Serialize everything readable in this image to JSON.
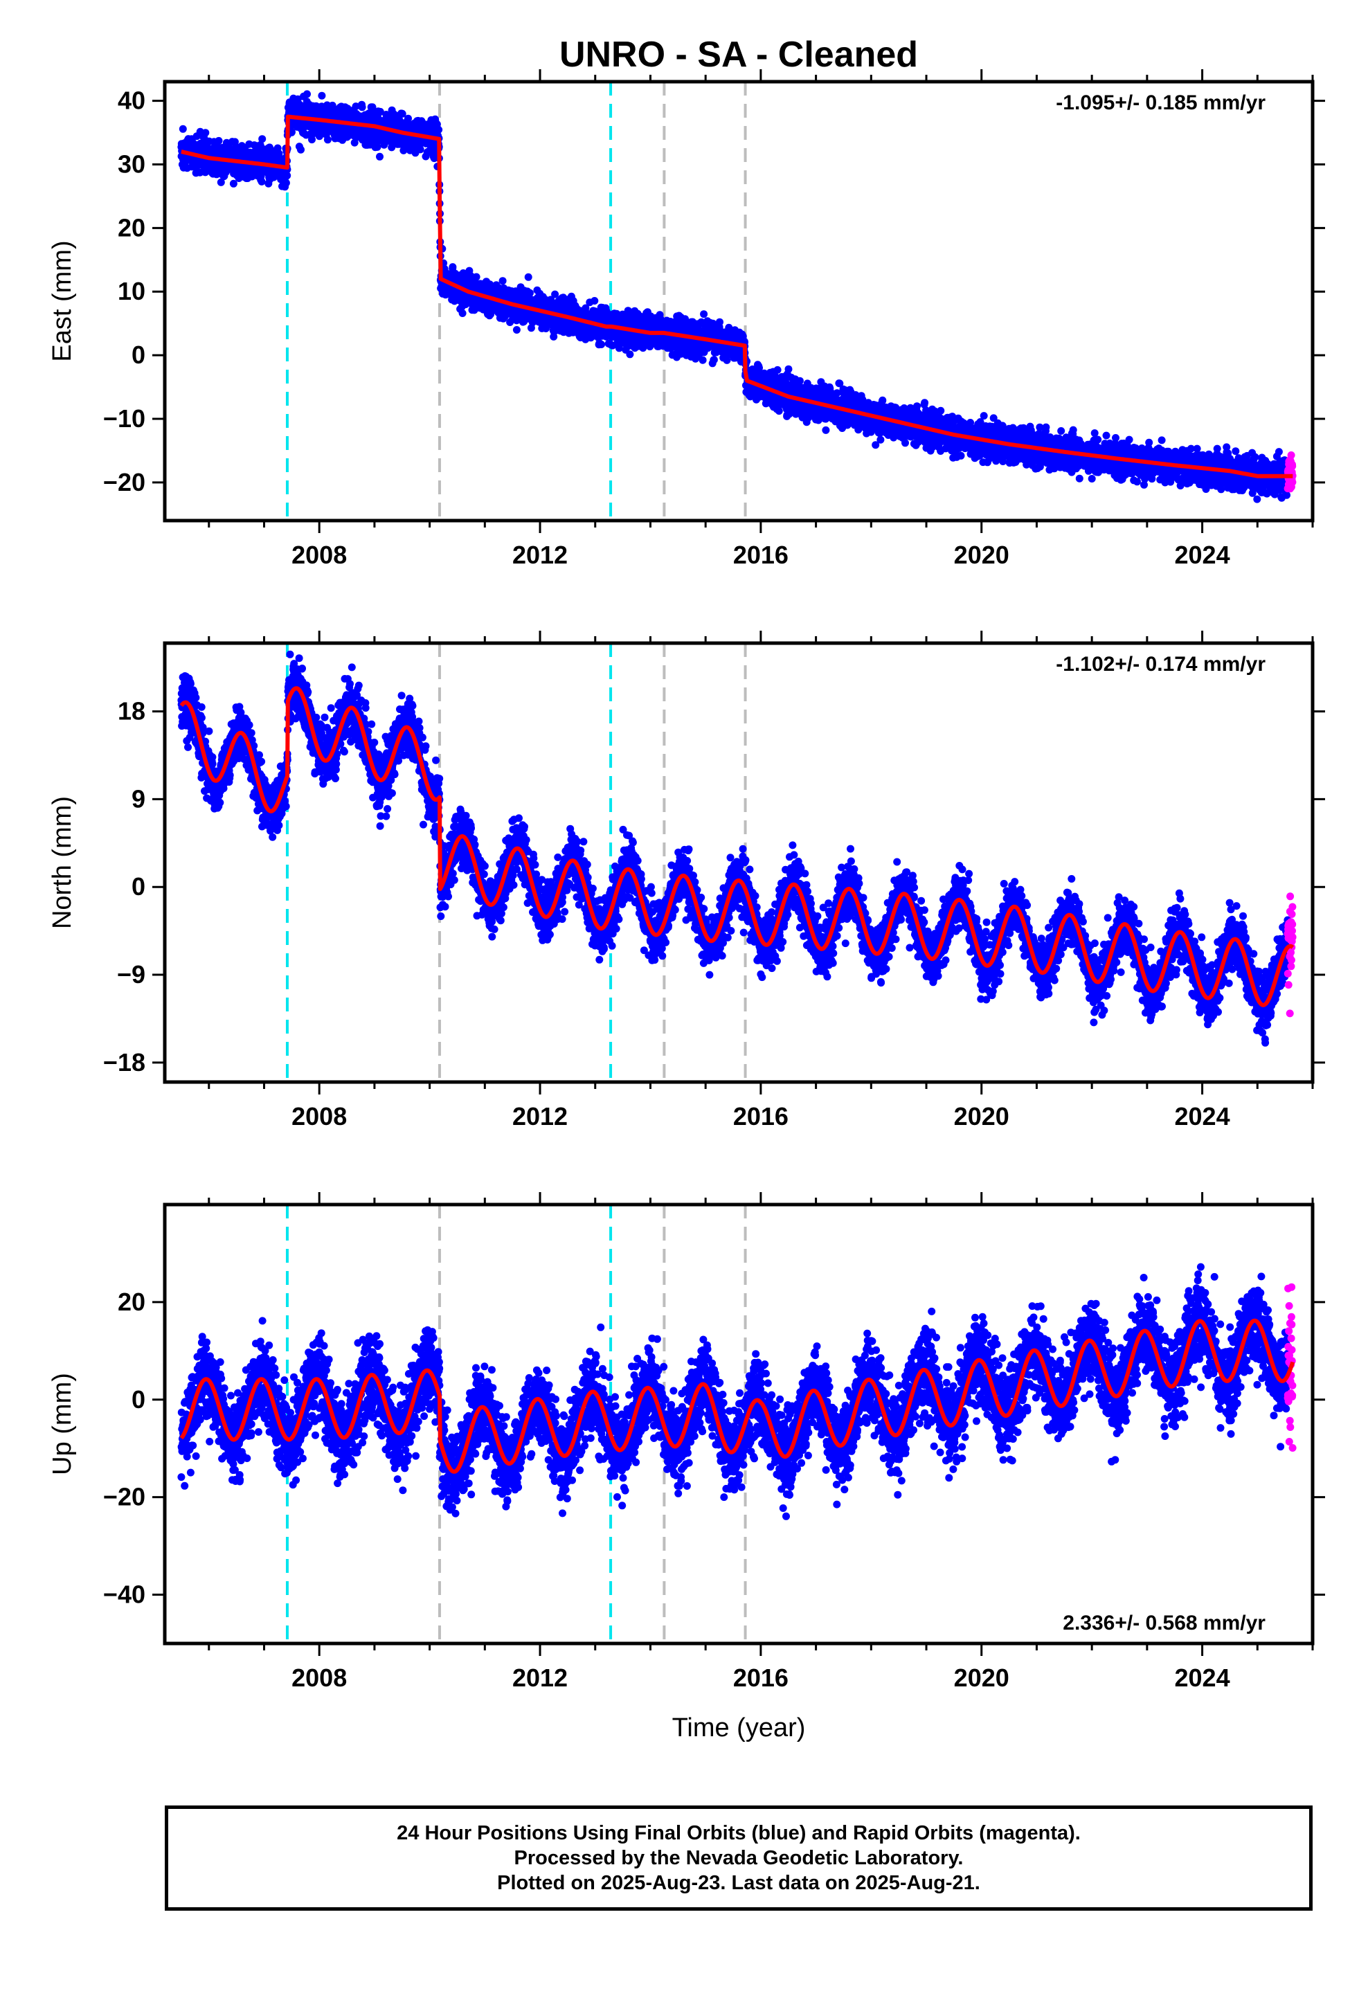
{
  "title": "UNRO  - SA - Cleaned",
  "colors": {
    "final_orbits": "#0000ff",
    "rapid_orbits": "#ff00ff",
    "model": "#ff0000",
    "event_cyan": "#00e5ee",
    "event_gray": "#bdbdbd",
    "frame": "#000000"
  },
  "xaxis": {
    "label": "Time (year)",
    "range": [
      2005.2,
      2026.0
    ],
    "ticks": [
      2008,
      2012,
      2016,
      2020,
      2024
    ],
    "tick_labels": [
      "2008",
      "2012",
      "2016",
      "2020",
      "2024"
    ]
  },
  "events": [
    {
      "year": 2007.42,
      "kind": "cyan"
    },
    {
      "year": 2010.18,
      "kind": "gray"
    },
    {
      "year": 2013.28,
      "kind": "cyan"
    },
    {
      "year": 2014.25,
      "kind": "gray"
    },
    {
      "year": 2015.72,
      "kind": "gray"
    }
  ],
  "rapid_start_year": 2025.55,
  "last_year": 2025.64,
  "chart_data": [
    {
      "type": "scatter",
      "component": "East",
      "ylabel": "East (mm)",
      "ylim": [
        -26,
        43
      ],
      "yticks": [
        -20,
        -10,
        0,
        10,
        20,
        30,
        40
      ],
      "ytick_labels": [
        "−20",
        "−10",
        "0",
        "10",
        "20",
        "30",
        "40"
      ],
      "rate_label": "-1.095+/- 0.185 mm/yr",
      "rate_position": "top-right",
      "scatter_sd": 1.3,
      "series": [
        {
          "name": "Final Orbits",
          "color": "#0000ff",
          "x_range": [
            2005.5,
            2025.55
          ]
        },
        {
          "name": "Rapid Orbits",
          "color": "#ff00ff",
          "x_range": [
            2025.55,
            2025.64
          ]
        },
        {
          "name": "Model",
          "color": "#ff0000",
          "x": [
            2005.5,
            2006.0,
            2006.5,
            2007.0,
            2007.42,
            2007.43,
            2008.0,
            2008.5,
            2009.0,
            2009.5,
            2010.17,
            2010.18,
            2010.2,
            2010.7,
            2011.5,
            2012.5,
            2013.2,
            2013.3,
            2014.0,
            2014.25,
            2015.0,
            2015.71,
            2015.72,
            2015.75,
            2016.5,
            2017.5,
            2018.5,
            2019.5,
            2020.5,
            2021.5,
            2022.5,
            2023.5,
            2024.5,
            2025.0,
            2025.64
          ],
          "y": [
            32,
            31,
            30.5,
            30,
            29.5,
            37.5,
            37,
            36.5,
            36,
            35,
            34,
            25,
            12,
            10,
            8,
            6,
            4.5,
            4.5,
            3.5,
            3.5,
            2.5,
            1.5,
            -2.5,
            -4,
            -6.5,
            -8.5,
            -10.5,
            -12.5,
            -14,
            -15.2,
            -16.3,
            -17.3,
            -18.2,
            -19,
            -19
          ]
        }
      ]
    },
    {
      "type": "scatter",
      "component": "North",
      "ylabel": "North (mm)",
      "ylim": [
        -20,
        25
      ],
      "yticks": [
        -18,
        -9,
        0,
        9,
        18
      ],
      "ytick_labels": [
        "−18",
        "−9",
        "0",
        "9",
        "18"
      ],
      "rate_label": "-1.102+/- 0.174 mm/yr",
      "rate_position": "top-right",
      "scatter_sd": 1.4,
      "series": [
        {
          "name": "Final Orbits",
          "color": "#0000ff",
          "x_range": [
            2005.5,
            2025.55
          ]
        },
        {
          "name": "Rapid Orbits",
          "color": "#ff00ff",
          "x_range": [
            2025.55,
            2025.64
          ]
        },
        {
          "name": "Model",
          "color": "#ff0000",
          "x": [
            2005.5,
            2007.42,
            2007.43,
            2010.18,
            2010.19,
            2011.0,
            2013.0,
            2015.0,
            2017.0,
            2019.0,
            2021.0,
            2023.0,
            2025.64
          ],
          "y": [
            16,
            10,
            17.5,
            12,
            2.5,
            1.5,
            -1,
            -2.3,
            -3.1,
            -4.1,
            -5.5,
            -7.4,
            -9.3
          ],
          "seasonal_amplitude": 3.2,
          "seasonal_peak_phase": 0.6
        }
      ]
    },
    {
      "type": "scatter",
      "component": "Up",
      "ylabel": "Up (mm)",
      "ylim": [
        -50,
        40
      ],
      "yticks": [
        -40,
        -20,
        0,
        20
      ],
      "ytick_labels": [
        "−40",
        "−20",
        "0",
        "20"
      ],
      "rate_label": "2.336+/- 0.568 mm/yr",
      "rate_position": "bottom-right",
      "scatter_sd": 4.2,
      "series": [
        {
          "name": "Final Orbits",
          "color": "#0000ff",
          "x_range": [
            2005.5,
            2025.55
          ]
        },
        {
          "name": "Rapid Orbits",
          "color": "#ff00ff",
          "x_range": [
            2025.55,
            2025.64
          ]
        },
        {
          "name": "Model",
          "color": "#ff0000",
          "x": [
            2005.5,
            2008.0,
            2010.18,
            2010.19,
            2012.0,
            2013.0,
            2015.0,
            2016.0,
            2018.0,
            2020.0,
            2022.0,
            2024.0,
            2025.64
          ],
          "y": [
            -2,
            -2,
            0,
            -9,
            -6,
            -4.5,
            -3,
            -6.5,
            -2,
            2,
            6,
            10,
            10
          ],
          "seasonal_amplitude": 6.2,
          "seasonal_peak_phase": 0.95
        }
      ]
    }
  ],
  "caption": {
    "line1": "24 Hour Positions Using Final Orbits (blue) and Rapid Orbits (magenta).",
    "line2": "Processed by the Nevada Geodetic Laboratory.",
    "line3": "Plotted on 2025-Aug-23. Last data on 2025-Aug-21."
  }
}
